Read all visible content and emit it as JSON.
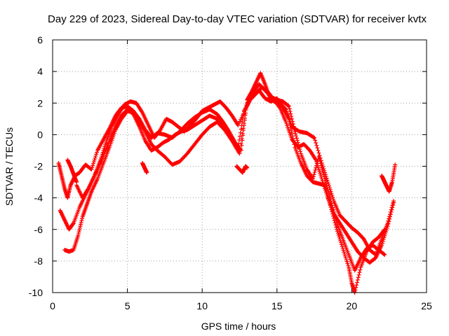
{
  "chart_data": {
    "type": "scatter",
    "title": "Day 229 of 2023, Sidereal Day-to-day VTEC variation (SDTVAR) for receiver kvtx",
    "xlabel": "GPS time / hours",
    "ylabel": "SDTVAR / TECUs",
    "xlim": [
      0,
      25
    ],
    "ylim": [
      -10,
      6
    ],
    "xticks": [
      "0",
      "5",
      "10",
      "15",
      "20",
      "25"
    ],
    "yticks": [
      "-10",
      "-8",
      "-6",
      "-4",
      "-2",
      "0",
      "2",
      "4",
      "6"
    ],
    "grid": true,
    "marker": "plus",
    "color": "#ff0000",
    "series": [
      {
        "x": [
          0.4,
          0.6,
          0.8,
          1.0,
          1.2,
          1.5,
          1.8,
          2.2,
          2.6,
          3.0,
          3.4,
          3.8,
          4.2,
          4.6,
          5.0,
          5.4,
          5.8,
          6.2,
          6.6,
          7.0,
          7.5,
          8.0,
          8.5,
          9.0,
          9.5,
          10.0,
          10.5,
          11.0,
          11.4,
          11.8,
          12.2,
          12.6,
          13.0,
          13.3,
          13.6,
          13.9,
          14.2,
          14.5,
          14.8,
          15.2,
          15.6,
          16.0,
          16.5,
          17.0,
          17.5,
          18.0,
          18.4,
          18.8,
          19.2,
          19.6,
          20.0,
          20.4,
          20.8,
          21.2,
          21.6,
          22.0,
          22.4,
          22.8
        ],
        "y": [
          -1.8,
          -2.6,
          -3.4,
          -4.0,
          -3.2,
          -2.6,
          -2.4,
          -1.9,
          -2.2,
          -1.0,
          -0.3,
          0.4,
          1.2,
          1.7,
          1.8,
          1.5,
          1.0,
          0.3,
          -0.2,
          0.1,
          0.0,
          -0.2,
          0.2,
          0.7,
          1.1,
          1.4,
          1.6,
          1.3,
          0.8,
          0.2,
          -0.5,
          -1.0,
          2.2,
          2.7,
          3.3,
          3.9,
          3.2,
          2.4,
          2.1,
          2.0,
          1.6,
          0.5,
          0.2,
          0.1,
          -0.2,
          -1.8,
          -3.0,
          -4.2,
          -5.1,
          -5.5,
          -5.9,
          -6.2,
          -6.6,
          -7.3,
          -7.6,
          -6.6,
          -5.6,
          -4.2
        ]
      },
      {
        "x": [
          0.5,
          0.8,
          1.1,
          1.4,
          1.8,
          2.2,
          2.6,
          3.0,
          3.4,
          3.8,
          4.2,
          4.6,
          5.0,
          5.4,
          5.8,
          6.2,
          6.6,
          7.0,
          7.4,
          7.8,
          8.2,
          8.6,
          9.0,
          9.5,
          10.0,
          10.5,
          11.0,
          11.5,
          12.0,
          12.4,
          12.8,
          13.2,
          13.6,
          14.0,
          14.4,
          14.8,
          15.2,
          15.6,
          16.0,
          16.4,
          16.8,
          17.2,
          17.6,
          18.0,
          18.4,
          18.8,
          19.2,
          19.6,
          20.0,
          20.4,
          20.8,
          21.2,
          21.6,
          22.0,
          22.4,
          22.8
        ],
        "y": [
          -4.8,
          -5.4,
          -6.0,
          -5.6,
          -4.6,
          -3.8,
          -3.0,
          -2.2,
          -1.3,
          -0.4,
          0.5,
          1.2,
          1.6,
          1.3,
          0.5,
          -0.4,
          -1.0,
          -0.8,
          -0.5,
          -0.3,
          0.0,
          0.2,
          0.3,
          0.6,
          0.9,
          1.2,
          1.0,
          0.4,
          -0.2,
          -0.8,
          1.5,
          2.2,
          2.6,
          3.0,
          2.7,
          2.2,
          1.7,
          0.8,
          -0.3,
          -0.8,
          -0.6,
          -1.0,
          -1.6,
          -2.8,
          -4.0,
          -5.0,
          -5.6,
          -6.2,
          -6.8,
          -7.4,
          -7.8,
          -8.1,
          -7.8,
          -7.0,
          -5.8,
          -4.3
        ]
      },
      {
        "x": [
          0.8,
          1.1,
          1.4,
          1.7,
          2.0,
          2.3,
          2.6,
          3.0,
          3.4,
          3.8,
          4.2,
          4.6,
          5.0,
          5.4,
          5.8,
          6.2,
          6.6,
          7.0,
          7.5,
          8.0,
          8.5,
          9.0,
          9.5,
          10.0,
          10.5,
          11.0,
          11.5,
          12.0,
          12.5,
          13.0,
          13.4,
          13.8,
          14.2,
          14.6,
          15.0,
          15.4,
          15.8,
          16.2,
          16.6,
          17.0,
          17.4,
          17.8,
          18.2,
          18.6,
          19.0,
          19.4,
          19.8,
          20.0,
          20.2,
          20.6,
          21.0,
          21.4,
          21.8,
          22.2
        ],
        "y": [
          -7.3,
          -7.4,
          -7.3,
          -6.4,
          -5.2,
          -4.4,
          -3.6,
          -2.8,
          -1.8,
          -0.8,
          0.3,
          1.0,
          1.5,
          1.4,
          0.8,
          0.2,
          -0.6,
          -1.0,
          -1.4,
          -1.9,
          -1.7,
          -1.2,
          -0.6,
          0.0,
          0.5,
          0.8,
          0.3,
          -0.4,
          -1.2,
          2.0,
          2.4,
          2.8,
          2.3,
          2.1,
          2.3,
          1.7,
          1.0,
          -0.8,
          -1.8,
          -2.6,
          -3.0,
          -3.1,
          -3.2,
          -4.6,
          -6.0,
          -7.2,
          -8.4,
          -9.4,
          -10.0,
          -8.4,
          -7.4,
          -6.8,
          -6.5,
          -6.0
        ]
      },
      {
        "x": [
          1.6,
          2.0,
          2.4,
          2.8,
          3.2,
          3.6,
          4.0,
          4.4,
          4.8,
          5.2,
          5.6,
          6.0,
          6.4,
          6.8,
          7.2,
          7.6,
          8.0,
          8.4,
          8.8,
          9.2,
          9.6,
          10.0,
          10.4,
          10.8,
          11.2,
          11.6,
          12.0,
          12.4,
          13.0,
          13.4,
          13.8,
          14.2,
          14.6,
          15.0,
          15.4,
          15.8,
          16.2,
          16.6,
          17.0,
          17.4,
          17.8,
          18.2,
          18.6,
          19.0,
          19.4,
          19.8,
          20.2,
          20.6,
          21.0,
          21.4,
          21.8,
          22.2
        ],
        "y": [
          -3.2,
          -4.0,
          -3.4,
          -2.6,
          -1.6,
          -0.4,
          0.6,
          1.3,
          1.9,
          2.1,
          2.0,
          1.4,
          0.6,
          -0.2,
          0.3,
          1.0,
          0.8,
          0.5,
          0.2,
          0.6,
          1.0,
          1.5,
          1.7,
          1.9,
          2.1,
          1.7,
          1.2,
          0.6,
          1.8,
          2.6,
          3.2,
          2.8,
          2.4,
          2.2,
          2.1,
          1.8,
          0.2,
          -1.2,
          -2.2,
          -2.8,
          -1.4,
          -2.8,
          -4.2,
          -5.6,
          -6.6,
          -7.6,
          -8.6,
          -7.8,
          -7.2,
          -7.0,
          -7.3,
          -7.6
        ]
      },
      {
        "x": [
          1.0,
          1.2,
          1.4,
          1.6,
          6.0,
          6.1,
          6.2,
          6.3,
          12.3,
          12.5,
          12.7,
          12.9,
          13.0,
          22.0,
          22.1,
          22.2,
          22.3,
          22.5,
          22.7,
          22.9
        ],
        "y": [
          -1.6,
          -2.0,
          -2.5,
          -3.0,
          -1.8,
          -2.0,
          -2.2,
          -2.4,
          -2.0,
          -2.2,
          -2.4,
          -2.0,
          -2.1,
          -2.6,
          -2.8,
          -3.0,
          -3.2,
          -3.6,
          -3.0,
          -1.9
        ]
      }
    ]
  }
}
